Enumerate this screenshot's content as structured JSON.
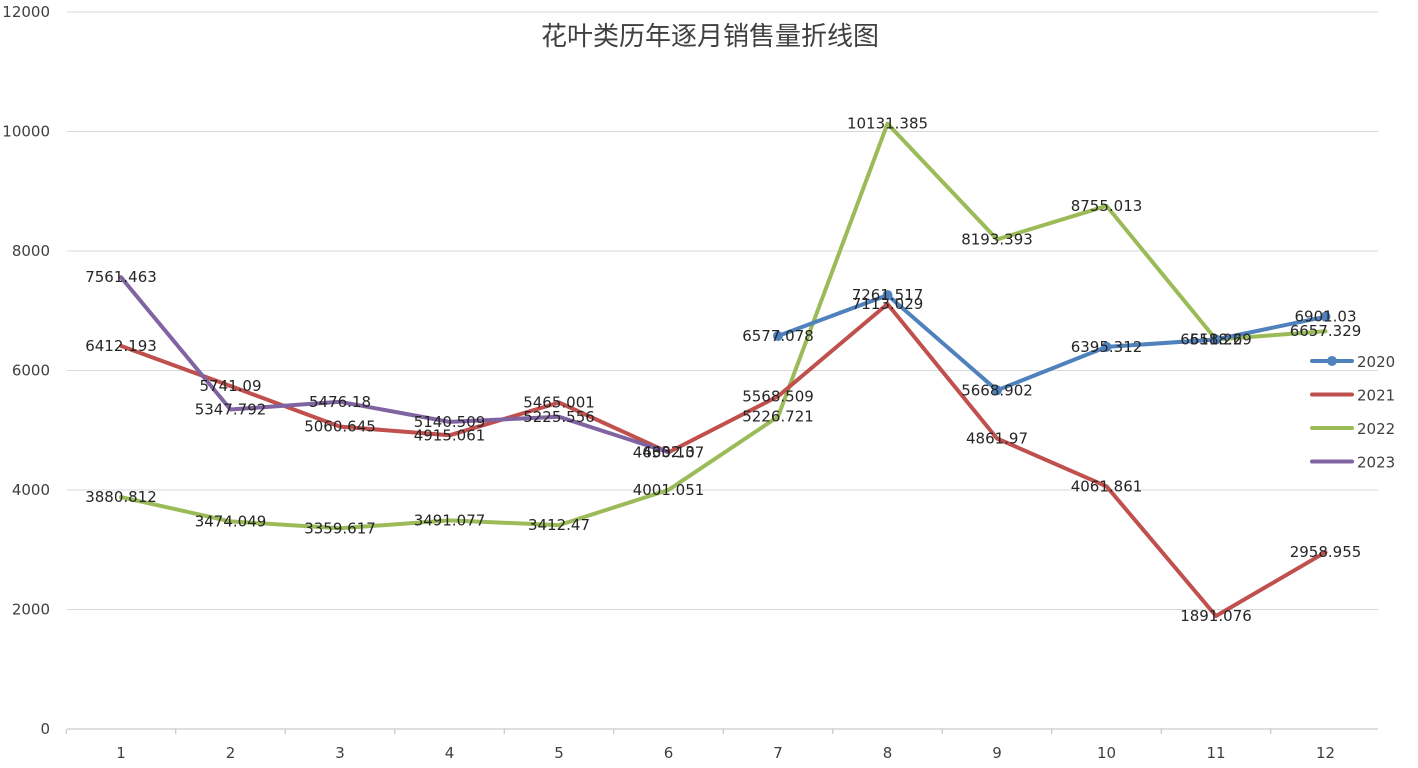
{
  "chart_data": {
    "type": "line",
    "title": "花叶类历年逐月销售量折线图",
    "xlabel": "",
    "ylabel": "",
    "categories": [
      "1",
      "2",
      "3",
      "4",
      "5",
      "6",
      "7",
      "8",
      "9",
      "10",
      "11",
      "12"
    ],
    "ylim": [
      0,
      12000
    ],
    "yticks": [
      "0",
      "2000",
      "4000",
      "6000",
      "8000",
      "10000",
      "12000"
    ],
    "grid": true,
    "legend_position": "right",
    "series": [
      {
        "name": "2020",
        "color": "#4f81bd",
        "marker": "circle",
        "values": [
          null,
          null,
          null,
          null,
          null,
          null,
          6577.078,
          7261.517,
          5668.902,
          6395.312,
          6518.269,
          6901.03
        ],
        "labels": [
          "",
          "",
          "",
          "",
          "",
          "",
          "6577.078",
          "7261.517",
          "5668.902",
          "6395.312",
          "6518.269",
          "6901.03"
        ]
      },
      {
        "name": "2021",
        "color": "#c0504d",
        "marker": "none",
        "values": [
          6412.193,
          5741.09,
          5060.645,
          4915.061,
          5465.001,
          4630.107,
          5568.509,
          7113.029,
          4861.97,
          4061.861,
          1891.076,
          2958.955
        ],
        "labels": [
          "6412.193",
          "5741.09",
          "5060.645",
          "4915.061",
          "5465.001",
          "4630.107",
          "5568.509",
          "7113.029",
          "4861.97",
          "4061.861",
          "1891.076",
          "2958.955"
        ]
      },
      {
        "name": "2022",
        "color": "#9bbb59",
        "marker": "none",
        "values": [
          3880.812,
          3474.049,
          3359.617,
          3491.077,
          3412.47,
          4001.051,
          5226.721,
          10131.385,
          8193.393,
          8755.013,
          6518.2,
          6657.329
        ],
        "labels": [
          "3880.812",
          "3474.049",
          "3359.617",
          "3491.077",
          "3412.47",
          "4001.051",
          "5226.721",
          "10131.385",
          "8193.393",
          "8755.013",
          "6518.2",
          "6657.329"
        ]
      },
      {
        "name": "2023",
        "color": "#8064a2",
        "marker": "none",
        "values": [
          7561.463,
          5347.792,
          5476.18,
          5140.509,
          5225.556,
          4632.3,
          null,
          null,
          null,
          null,
          null,
          null
        ],
        "labels": [
          "7561.463",
          "5347.792",
          "5476.18",
          "5140.509",
          "5225.556",
          "4632.3",
          "",
          "",
          "",
          "",
          "",
          ""
        ]
      }
    ]
  }
}
